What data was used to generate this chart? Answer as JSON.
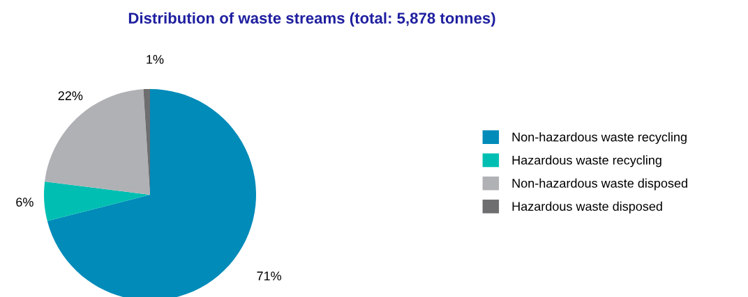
{
  "chart_data": {
    "type": "pie",
    "title": "Distribution of waste streams (total: 5,878 tonnes)",
    "categories": [
      "Non-hazardous waste recycling",
      "Hazardous waste recycling",
      "Non-hazardous waste disposed",
      "Hazardous waste disposed"
    ],
    "values": [
      71,
      6,
      22,
      1
    ],
    "value_labels": [
      "71%",
      "6%",
      "22%",
      "1%"
    ],
    "colors": [
      "#008bb9",
      "#00bfb2",
      "#b0b1b5",
      "#6e6e70"
    ],
    "legend": "right"
  }
}
